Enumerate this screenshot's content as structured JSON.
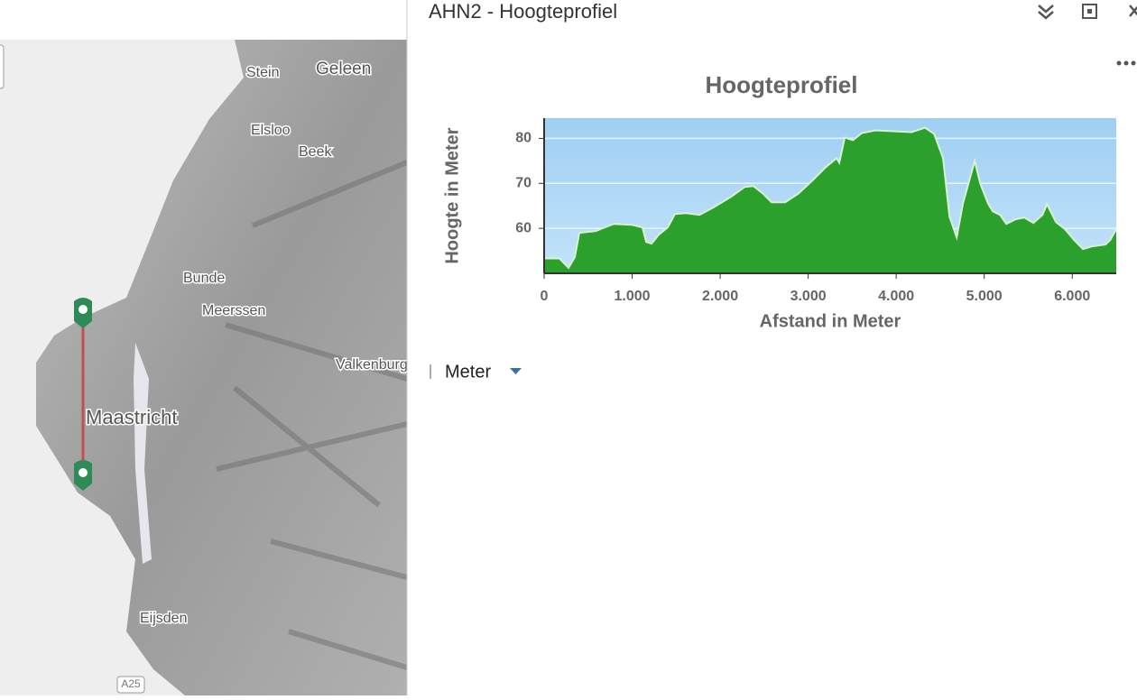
{
  "panel": {
    "title": "AHN2 - Hoogteprofiel",
    "unit_selector": "Meter"
  },
  "map": {
    "labels": [
      "Stein",
      "Geleen",
      "Elsloo",
      "Beek",
      "Bunde",
      "Meerssen",
      "Valkenburg",
      "Maastricht",
      "Eijsden",
      "A25"
    ]
  },
  "chart_data": {
    "type": "area",
    "title": "Hoogteprofiel",
    "x_label": "Afstand in Meter",
    "y_label": "Hoogte in Meter",
    "color": "#2ca02c",
    "grid": true,
    "x": [
      0,
      174,
      277,
      349,
      400,
      585,
      790,
      995,
      1118,
      1159,
      1220,
      1303,
      1405,
      1487,
      1610,
      1764,
      1918,
      2123,
      2277,
      2379,
      2482,
      2585,
      2738,
      2892,
      3046,
      3200,
      3323,
      3354,
      3415,
      3508,
      3610,
      3764,
      3969,
      4174,
      4328,
      4431,
      4533,
      4605,
      4687,
      4759,
      4841,
      4892,
      4954,
      5046,
      5097,
      5179,
      5251,
      5354,
      5456,
      5559,
      5662,
      5713,
      5815,
      5918,
      6021,
      6123,
      6226,
      6379,
      6431,
      6500
    ],
    "values": [
      53.3,
      53.3,
      51.2,
      53.6,
      59,
      59.4,
      61,
      60.8,
      60.2,
      57,
      56.6,
      58.6,
      60.2,
      63.2,
      63.4,
      63,
      64.6,
      67,
      69.2,
      69.4,
      67.8,
      65.8,
      65.8,
      67.8,
      70.6,
      73.6,
      75.6,
      74.6,
      80.2,
      79.6,
      81.2,
      81.8,
      81.6,
      81.4,
      82.4,
      81,
      75.6,
      62.6,
      58,
      65.6,
      71.4,
      75,
      70,
      65.4,
      63.8,
      63,
      61,
      62,
      62.4,
      61.2,
      63,
      65.4,
      61.4,
      59.8,
      57.4,
      55.4,
      56,
      56.4,
      57.4,
      59.8
    ],
    "xlim": [
      0,
      6500
    ],
    "ylim": [
      50,
      84.5
    ],
    "xticks": [
      0,
      {
        "value": 1000,
        "label": "1.000"
      },
      {
        "value": 2000,
        "label": "2.000"
      },
      {
        "value": 3000,
        "label": "3.000"
      },
      {
        "value": 4000,
        "label": "4.000"
      },
      {
        "value": 5000,
        "label": "5.000"
      },
      {
        "value": 6000,
        "label": "6.000"
      }
    ],
    "yticks": [
      60,
      70,
      80
    ]
  }
}
